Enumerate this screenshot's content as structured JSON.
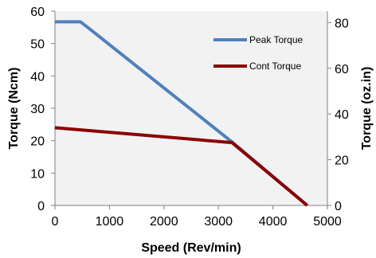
{
  "chart_data": {
    "type": "line",
    "xlabel": "Speed (Rev/min)",
    "ylabel": "Torque (Ncm)",
    "y2label": "Torque (oz.in)",
    "xlim": [
      0,
      5000
    ],
    "ylim": [
      0,
      60
    ],
    "y2lim": [
      0,
      85
    ],
    "xticks": [
      "0",
      "1000",
      "2000",
      "3000",
      "4000",
      "5000"
    ],
    "yticks": [
      "0",
      "10",
      "20",
      "30",
      "40",
      "50",
      "60"
    ],
    "y2ticks": [
      "0",
      "20",
      "40",
      "60",
      "80"
    ],
    "grid": false,
    "legend_position": "top-right",
    "series": [
      {
        "name": "Peak Torque",
        "color": "#4f81bd",
        "points": [
          [
            0,
            56.7
          ],
          [
            470,
            56.7
          ],
          [
            600,
            55.0
          ],
          [
            3250,
            19.6
          ],
          [
            4630,
            0
          ]
        ]
      },
      {
        "name": "Cont Torque",
        "color": "#8b0000",
        "points": [
          [
            0,
            24.0
          ],
          [
            3250,
            19.4
          ],
          [
            4630,
            0
          ]
        ]
      }
    ]
  }
}
